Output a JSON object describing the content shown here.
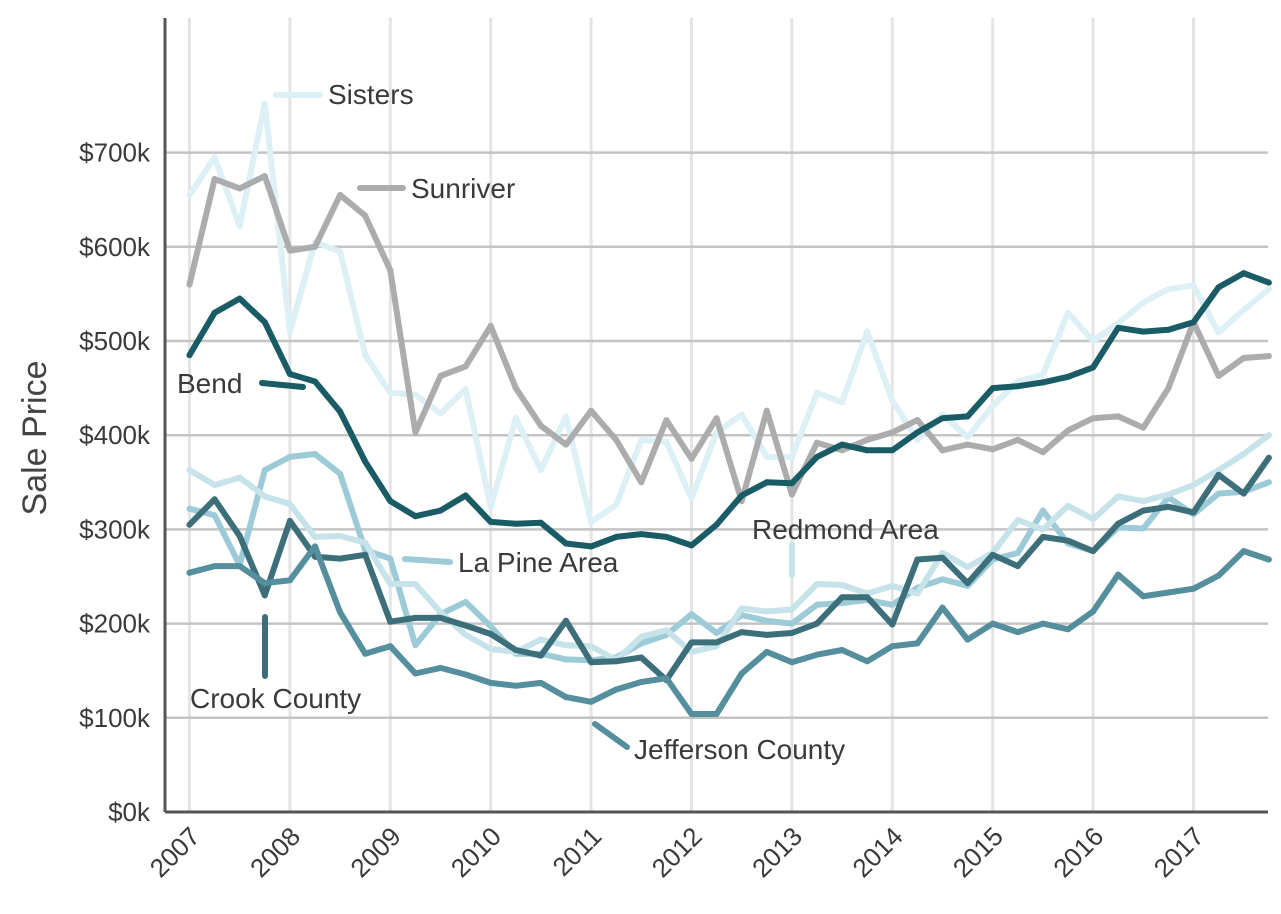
{
  "chart_data": {
    "type": "line",
    "title": "",
    "xlabel": "",
    "ylabel": "Sale Price",
    "x_tick_labels": [
      "2007",
      "2008",
      "2009",
      "2010",
      "2011",
      "2012",
      "2013",
      "2014",
      "2015",
      "2016",
      "2017"
    ],
    "y_tick_labels": [
      "$0k",
      "$100k",
      "$200k",
      "$300k",
      "$400k",
      "$500k",
      "$600k",
      "$700k"
    ],
    "y_ticks": [
      0,
      100,
      200,
      300,
      400,
      500,
      600,
      700
    ],
    "ylim": [
      0,
      840
    ],
    "xlim": [
      2006.9,
      2017.75
    ],
    "grid": "horizontal and vertical",
    "x": [
      2007.0,
      2007.25,
      2007.5,
      2007.75,
      2008.0,
      2008.25,
      2008.5,
      2008.75,
      2009.0,
      2009.25,
      2009.5,
      2009.75,
      2010.0,
      2010.25,
      2010.5,
      2010.75,
      2011.0,
      2011.25,
      2011.5,
      2011.75,
      2012.0,
      2012.25,
      2012.5,
      2012.75,
      2013.0,
      2013.25,
      2013.5,
      2013.75,
      2014.0,
      2014.25,
      2014.5,
      2014.75,
      2015.0,
      2015.25,
      2015.5,
      2015.75,
      2016.0,
      2016.25,
      2016.5,
      2016.75,
      2017.0,
      2017.25,
      2017.5,
      2017.75
    ],
    "series": [
      {
        "name": "Sisters",
        "color": "#dcf0f5",
        "label_side": "right",
        "values": [
          655,
          695,
          622,
          752,
          510,
          605,
          595,
          485,
          445,
          443,
          423,
          449,
          324,
          418,
          363,
          420,
          308,
          326,
          395,
          393,
          333,
          403,
          422,
          377,
          377,
          445,
          435,
          510,
          437,
          395,
          422,
          398,
          431,
          457,
          464,
          530,
          500,
          519,
          541,
          555,
          559,
          509,
          533,
          555
        ]
      },
      {
        "name": "Sunriver",
        "color": "#acacac",
        "label_side": "right",
        "values": [
          560,
          672,
          662,
          675,
          596,
          600,
          655,
          633,
          575,
          403,
          463,
          473,
          516,
          450,
          410,
          390,
          426,
          395,
          350,
          416,
          375,
          418,
          330,
          426,
          337,
          392,
          384,
          395,
          403,
          416,
          384,
          390,
          385,
          395,
          382,
          405,
          418,
          420,
          408,
          450,
          520,
          463,
          482,
          484
        ]
      },
      {
        "name": "Bend",
        "color": "#1a5c66",
        "label_side": "left",
        "values": [
          485,
          530,
          545,
          520,
          465,
          457,
          425,
          372,
          330,
          314,
          320,
          336,
          308,
          306,
          307,
          285,
          282,
          292,
          295,
          292,
          283,
          305,
          336,
          350,
          349,
          377,
          390,
          384,
          384,
          403,
          418,
          420,
          450,
          452,
          456,
          462,
          472,
          514,
          510,
          512,
          520,
          557,
          572,
          562
        ]
      },
      {
        "name": "La Pine Area",
        "color": "#9ccbd7",
        "label_side": "right",
        "values": [
          322,
          315,
          262,
          363,
          377,
          380,
          359,
          278,
          269,
          177,
          210,
          223,
          197,
          168,
          168,
          162,
          161,
          164,
          179,
          188,
          210,
          190,
          209,
          203,
          200,
          220,
          222,
          225,
          220,
          238,
          247,
          240,
          268,
          275,
          320,
          285,
          277,
          302,
          301,
          334,
          316,
          338,
          340,
          350
        ]
      },
      {
        "name": "Redmond Area",
        "color": "#c6e3ea",
        "label_side": "top",
        "values": [
          363,
          347,
          355,
          335,
          327,
          292,
          293,
          286,
          242,
          242,
          212,
          188,
          173,
          170,
          183,
          177,
          176,
          161,
          186,
          193,
          170,
          176,
          216,
          213,
          215,
          242,
          241,
          232,
          240,
          232,
          275,
          260,
          275,
          310,
          300,
          325,
          311,
          335,
          330,
          337,
          347,
          363,
          380,
          400
        ]
      },
      {
        "name": "Crook County",
        "color": "#3d6f7a",
        "label_side": "bottom",
        "values": [
          305,
          332,
          293,
          230,
          309,
          271,
          269,
          273,
          202,
          206,
          206,
          198,
          189,
          172,
          166,
          203,
          159,
          160,
          164,
          140,
          180,
          180,
          191,
          188,
          190,
          200,
          228,
          228,
          199,
          268,
          270,
          243,
          273,
          261,
          292,
          288,
          277,
          306,
          320,
          324,
          318,
          358,
          338,
          376
        ]
      },
      {
        "name": "Jefferson County",
        "color": "#558e9c",
        "label_side": "bottom",
        "values": [
          254,
          261,
          261,
          243,
          246,
          282,
          212,
          168,
          176,
          147,
          153,
          146,
          137,
          134,
          137,
          122,
          117,
          130,
          138,
          142,
          104,
          104,
          147,
          170,
          159,
          167,
          172,
          160,
          176,
          179,
          217,
          183,
          200,
          191,
          200,
          194,
          213,
          252,
          229,
          233,
          237,
          251,
          277,
          268
        ]
      }
    ],
    "labels": {
      "Sisters": "Sisters",
      "Sunriver": "Sunriver",
      "Bend": "Bend",
      "La Pine Area": "La Pine Area",
      "Redmond Area": "Redmond Area",
      "Crook County": "Crook County",
      "Jefferson County": "Jefferson County"
    }
  }
}
